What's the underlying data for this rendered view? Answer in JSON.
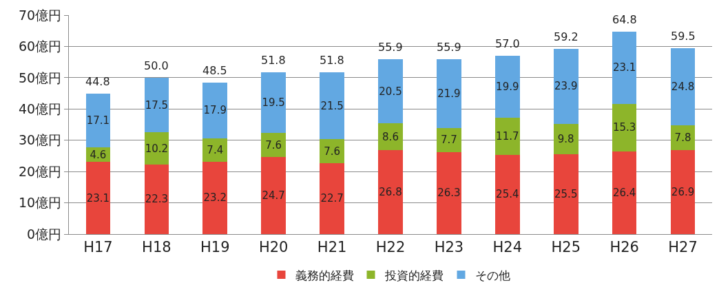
{
  "chart_data": {
    "type": "bar",
    "stacked": true,
    "categories": [
      "H17",
      "H18",
      "H19",
      "H20",
      "H21",
      "H22",
      "H23",
      "H24",
      "H25",
      "H26",
      "H27"
    ],
    "series": [
      {
        "name": "義務的経費",
        "color": "#e8453c",
        "values": [
          23.1,
          22.3,
          23.2,
          24.7,
          22.7,
          26.8,
          26.3,
          25.4,
          25.5,
          26.4,
          26.9
        ]
      },
      {
        "name": "投資的経費",
        "color": "#8db52a",
        "values": [
          4.6,
          10.2,
          7.4,
          7.6,
          7.6,
          8.6,
          7.7,
          11.7,
          9.8,
          15.3,
          7.8
        ]
      },
      {
        "name": "その他",
        "color": "#62a8e2",
        "values": [
          17.1,
          17.5,
          17.9,
          19.5,
          21.5,
          20.5,
          21.9,
          19.9,
          23.9,
          23.1,
          24.8
        ]
      }
    ],
    "totals": [
      "44.8",
      "50.0",
      "48.5",
      "51.8",
      "51.8",
      "55.9",
      "55.9",
      "57.0",
      "59.2",
      "64.8",
      "59.5"
    ],
    "data_labels": true,
    "ylim": [
      0,
      70
    ],
    "yticks": [
      {
        "value": 0,
        "label": "0億円"
      },
      {
        "value": 10,
        "label": "10億円"
      },
      {
        "value": 20,
        "label": "20億円"
      },
      {
        "value": 30,
        "label": "30億円"
      },
      {
        "value": 40,
        "label": "40億円"
      },
      {
        "value": 50,
        "label": "50億円"
      },
      {
        "value": 60,
        "label": "60億円"
      },
      {
        "value": 70,
        "label": "70億円"
      }
    ],
    "grid": "y",
    "legend": "bottom"
  }
}
